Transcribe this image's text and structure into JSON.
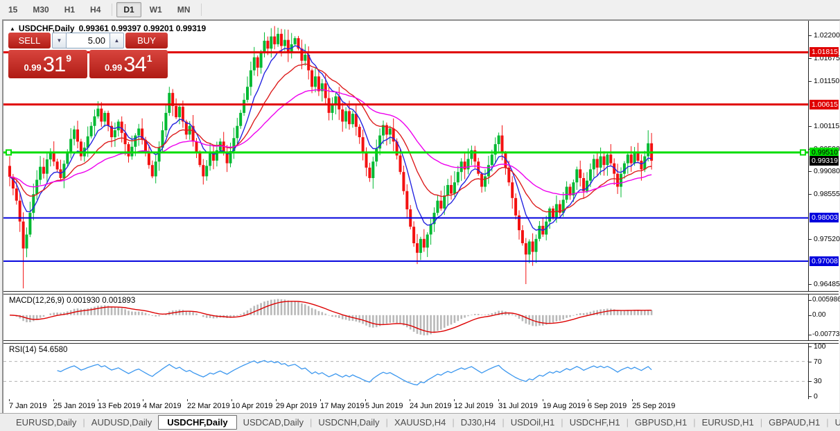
{
  "toolbar": {
    "timeframes": [
      "15",
      "M30",
      "H1",
      "H4",
      "D1",
      "W1",
      "MN"
    ],
    "active": "D1"
  },
  "chart": {
    "collapse_icon": "▲",
    "title": "USDCHF,Daily",
    "quotes": "0.99361 0.99397 0.99201 0.99319",
    "trade_panel": {
      "sell_label": "SELL",
      "buy_label": "BUY",
      "volume": "5.00",
      "spin_down_icon": "▼",
      "spin_up_icon": "▲",
      "sell_price_small": "0.99",
      "sell_price_big": "31",
      "sell_price_sup": "9",
      "buy_price_small": "0.99",
      "buy_price_big": "34",
      "buy_price_sup": "1"
    }
  },
  "chart_data": {
    "type": "candlestick",
    "symbol": "USDCHF",
    "timeframe": "Daily",
    "ohlc_current": {
      "open": 0.99361,
      "high": 0.99397,
      "low": 0.99201,
      "close": 0.99319
    },
    "price_range": {
      "top": 1.0254,
      "bottom": 0.9632
    },
    "first_open": 0.992,
    "closes": [
      0.9895,
      0.9868,
      0.984,
      0.9792,
      0.973,
      0.9762,
      0.9812,
      0.9855,
      0.9888,
      0.9918,
      0.9902,
      0.9935,
      0.9952,
      0.993,
      0.9912,
      0.9892,
      0.9925,
      0.9953,
      0.9982,
      1.0004,
      0.9976,
      0.9942,
      0.9962,
      0.9988,
      1.0012,
      1.0034,
      1.0052,
      1.0022,
      1.0042,
      1.0012,
      0.9986,
      1.0002,
      1.0022,
      0.9996,
      0.997,
      0.9942,
      0.9964,
      0.999,
      1.0006,
      0.998,
      0.9952,
      0.9922,
      0.9896,
      0.993,
      0.9962,
      1.0002,
      1.0042,
      1.0088,
      1.0058,
      1.0032,
      1.0056,
      1.0022,
      0.9992,
      1.0012,
      0.9976,
      0.995,
      0.9922,
      0.9896,
      0.992,
      0.995,
      0.9932,
      0.9956,
      0.9976,
      0.995,
      0.9926,
      0.9954,
      0.9984,
      1.0012,
      1.0042,
      1.0072,
      1.0102,
      1.014,
      1.017,
      1.0146,
      1.018,
      1.0208,
      1.019,
      1.0218,
      1.02,
      1.0224,
      1.0196,
      1.021,
      1.0182,
      1.02,
      1.0214,
      1.019,
      1.0162,
      1.0176,
      1.014,
      1.0102,
      1.0126,
      1.0092,
      1.011,
      1.0076,
      1.0042,
      1.006,
      1.008,
      1.005,
      1.0022,
      1.0046,
      1.0016,
      1.004,
      1.001,
      0.9986,
      0.995,
      0.9916,
      0.9892,
      0.993,
      0.996,
      0.999,
      1.0014,
      0.9992,
      1.0006,
      0.9976,
      0.9944,
      0.9906,
      0.9862,
      0.982,
      0.978,
      0.9742,
      0.972,
      0.9752,
      0.9732,
      0.9762,
      0.9786,
      0.9812,
      0.984,
      0.9822,
      0.9852,
      0.9876,
      0.9856,
      0.9882,
      0.9906,
      0.993,
      0.9912,
      0.9936,
      0.9956,
      0.993,
      0.9902,
      0.9872,
      0.9896,
      0.9922,
      0.9946,
      0.997,
      0.999,
      0.995,
      0.9916,
      0.9882,
      0.9846,
      0.9806,
      0.9772,
      0.9742,
      0.9716,
      0.9746,
      0.9722,
      0.9752,
      0.9782,
      0.9762,
      0.9792,
      0.9822,
      0.9802,
      0.9832,
      0.9812,
      0.9842,
      0.9872,
      0.9852,
      0.9882,
      0.9912,
      0.9892,
      0.9862,
      0.9886,
      0.9912,
      0.9936,
      0.9916,
      0.9942,
      0.9922,
      0.9946,
      0.9926,
      0.9902,
      0.9872,
      0.9902,
      0.9926,
      0.9946,
      0.9926,
      0.9952,
      0.9932,
      0.9912,
      0.9942,
      0.9972,
      0.99319
    ],
    "spike_lows": {
      "4": 0.9638,
      "120": 0.9694,
      "152": 0.9648,
      "154": 0.969
    },
    "spike_highs": {
      "79": 1.0238,
      "188": 1.0002
    },
    "moving_averages": [
      {
        "name": "ma-fast",
        "period": 8,
        "color": "#2424e0"
      },
      {
        "name": "ma-mid",
        "period": 20,
        "color": "#dd1d1d"
      },
      {
        "name": "ma-slow",
        "period": 45,
        "color": "#ee00ee"
      }
    ],
    "levels": [
      {
        "label": "1.01815",
        "price": 1.01815,
        "color": "#e00000",
        "width": 3,
        "badge_bg": "#e00000",
        "badge_fg": "#ffffff",
        "handles": false
      },
      {
        "label": "1.00615",
        "price": 1.00615,
        "color": "#e00000",
        "width": 3,
        "badge_bg": "#e00000",
        "badge_fg": "#ffffff",
        "handles": false
      },
      {
        "label": "0.99510",
        "price": 0.9951,
        "color": "#00dd00",
        "width": 3,
        "badge_bg": "#00dd00",
        "badge_fg": "#000000",
        "handles": true
      },
      {
        "label": "0.98003",
        "price": 0.98003,
        "color": "#0000dd",
        "width": 2,
        "badge_bg": "#0000dd",
        "badge_fg": "#ffffff",
        "handles": false
      },
      {
        "label": "0.97008",
        "price": 0.97008,
        "color": "#0000dd",
        "width": 2,
        "badge_bg": "#0000dd",
        "badge_fg": "#ffffff",
        "handles": false
      }
    ],
    "current_price": {
      "label": "0.99319",
      "price": 0.99319,
      "bg": "#000000",
      "fg": "#ffffff"
    },
    "price_axis_ticks": [
      "1.02200",
      "1.01675",
      "1.01150",
      "1.00115",
      "0.99590",
      "0.99080",
      "0.98555",
      "0.97520",
      "0.96485"
    ],
    "x_axis_dates": [
      "7 Jan 2019",
      "25 Jan 2019",
      "13 Feb 2019",
      "4 Mar 2019",
      "22 Mar 2019",
      "10 Apr 2019",
      "29 Apr 2019",
      "17 May 2019",
      "5 Jun 2019",
      "24 Jun 2019",
      "12 Jul 2019",
      "31 Jul 2019",
      "19 Aug 2019",
      "6 Sep 2019",
      "25 Sep 2019"
    ],
    "macd": {
      "label": "MACD(12,26,9) 0.001930 0.001893",
      "fast": 12,
      "slow": 26,
      "signal": 9,
      "axis_labels": [
        {
          "text": "0.005986",
          "value": 0.005986
        },
        {
          "text": "0.00",
          "value": 0
        },
        {
          "text": "-0.007737",
          "value": -0.007737
        }
      ]
    },
    "rsi": {
      "label": "RSI(14) 54.6580",
      "period": 14,
      "levels": [
        70,
        30
      ],
      "axis_labels": [
        {
          "text": "100",
          "value": 100
        },
        {
          "text": "70",
          "value": 70
        },
        {
          "text": "30",
          "value": 30
        },
        {
          "text": "0",
          "value": 0
        }
      ]
    }
  },
  "tabs": {
    "items": [
      "EURUSD,Daily",
      "AUDUSD,Daily",
      "USDCHF,Daily",
      "USDCAD,Daily",
      "USDCNH,Daily",
      "XAUUSD,H4",
      "DJ30,H4",
      "USDOil,H1",
      "USDCHF,H1",
      "GBPUSD,H1",
      "EURUSD,H1",
      "GBPAUD,H1",
      "USDJP"
    ],
    "active_index": 2,
    "left_arrow": "◄",
    "right_arrow": "►"
  },
  "colors": {
    "bull": "#00b932",
    "bear": "#f31111",
    "macd_hist": "#b9b9b9",
    "macd_signal": "#dd0000",
    "rsi": "#3b97ef",
    "panel_red_top": "#d8453e",
    "panel_red_bottom": "#b01b14"
  }
}
